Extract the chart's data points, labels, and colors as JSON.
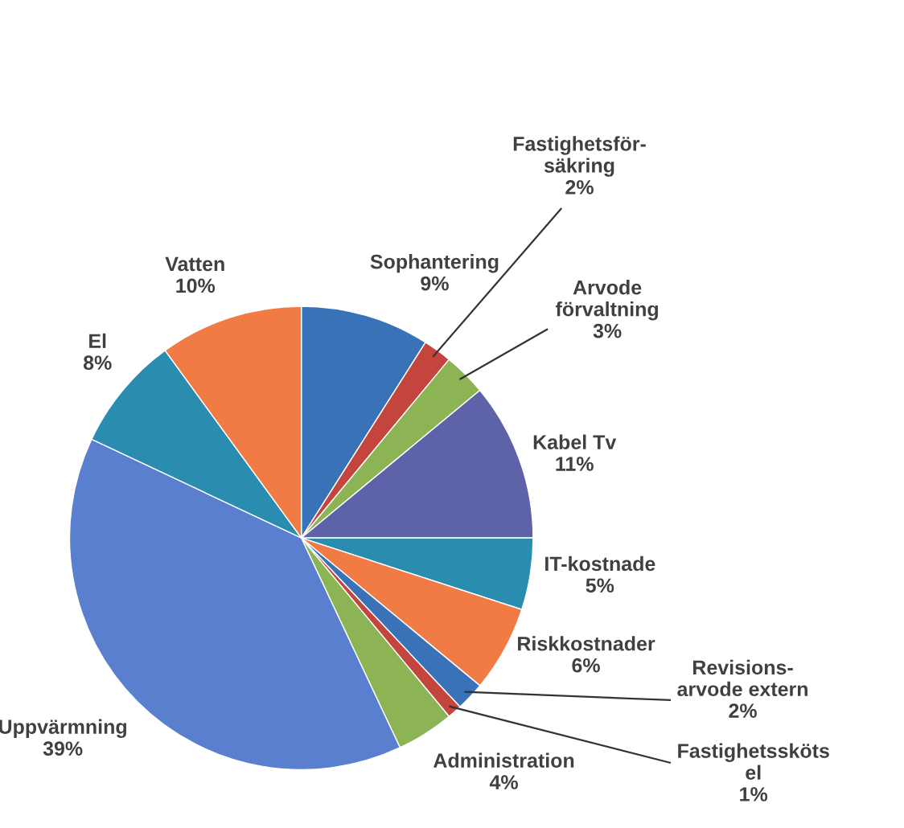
{
  "chart_data": {
    "type": "pie",
    "categories": [
      "Sophantering",
      "Fastighetsför-\nsäkring",
      "Arvode\nförvaltning",
      "Kabel Tv",
      "IT-kostnade",
      "Riskkostnader",
      "Revisions-\narvode extern",
      "Fastighetssköts\nel",
      "Administration",
      "Uppvärmning",
      "El",
      "Vatten"
    ],
    "values": [
      9,
      2,
      3,
      11,
      5,
      6,
      2,
      1,
      4,
      39,
      8,
      10
    ],
    "value_labels": [
      "9%",
      "2%",
      "3%",
      "11%",
      "5%",
      "6%",
      "2%",
      "1%",
      "4%",
      "39%",
      "8%",
      "10%"
    ],
    "colors": [
      "#3a72b8",
      "#c4453e",
      "#8cb455",
      "#5e62a8",
      "#2a8db0",
      "#f07b45",
      "#3a72b8",
      "#c4453e",
      "#8cb455",
      "#5a7fce",
      "#2a8db0",
      "#f07b45"
    ],
    "legend": false
  }
}
